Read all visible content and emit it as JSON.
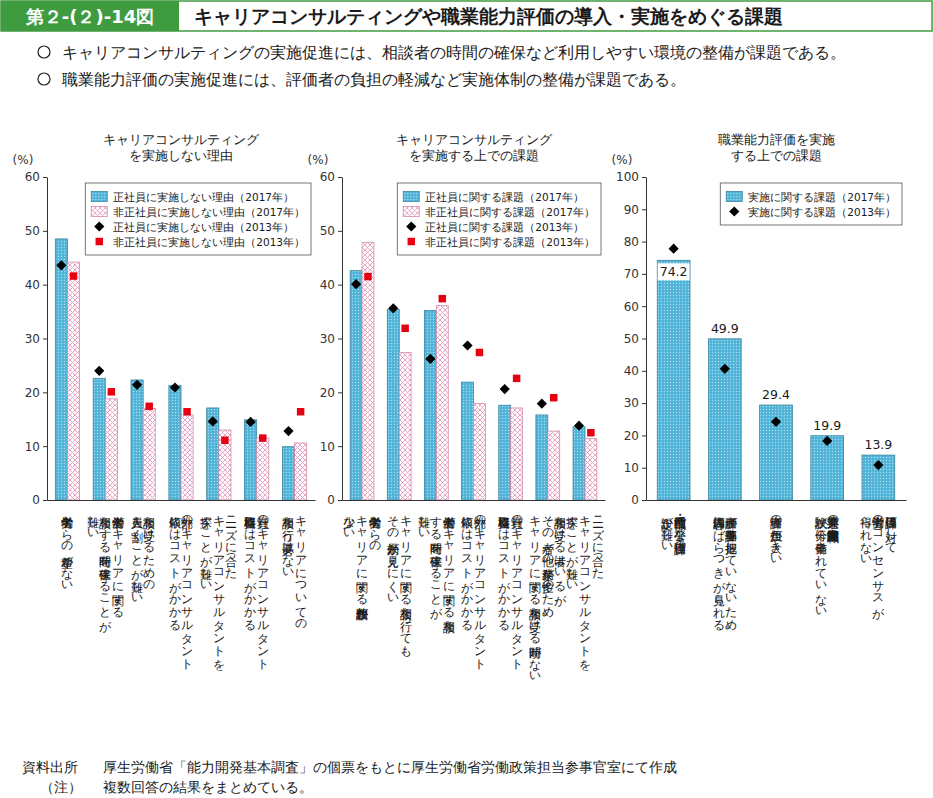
{
  "figure_number": "第２-(２)-14図",
  "title": "キャリアコンサルティングや職業能力評価の導入・実施をめぐる課題",
  "summary": [
    "キャリアコンサルティングの実施促進には、相談者の時間の確保など利用しやすい環境の整備が課題である。",
    "職業能力評価の実施促進には、評価者の負担の軽減など実施体制の整備が課題である。"
  ],
  "source_label": "資料出所",
  "source": "厚生労働省「能力開発基本調査」の個票をもとに厚生労働省労働政策担当参事官室にて作成",
  "note_label": "（注）",
  "note": "複数回答の結果をまとめている。",
  "chart_data": [
    {
      "type": "bar",
      "title": "キャリアコンサルティング\nを実施しない理由",
      "ylabel": "(%)",
      "categories": [
        "労働者からの希望がない",
        "労働者がキャリアに関する\n相談をする時間を確保することが\n難しい",
        "相談を受けるための\n人員を割くことが難しい",
        "外部のキャリアコンサルタント\n依頼にはコストがかかる",
        "ニーズに合った\nキャリアコンサルタントを\n探すことが難しい",
        "社員のキャリアコンサルタント\n資格取得にはコストがかかる",
        "キャリアについての\n相談を行う必要はない"
      ],
      "series": [
        {
          "name": "正社員に実施しない理由（2017年）",
          "type": "bar",
          "color": "#4fb4d8",
          "values": [
            48.5,
            22.6,
            22.3,
            21.3,
            17.1,
            14.9,
            9.9
          ]
        },
        {
          "name": "非正社員に実施しない理由（2017年）",
          "type": "bar",
          "color": "#e99cc0",
          "values": [
            44.2,
            18.8,
            17.0,
            15.8,
            13.0,
            11.5,
            10.6
          ]
        },
        {
          "name": "正社員に実施しない理由（2013年）",
          "type": "scatter",
          "marker": "diamond",
          "color": "#000000",
          "values": [
            43.6,
            24.0,
            21.4,
            20.9,
            14.6,
            14.5,
            12.8
          ]
        },
        {
          "name": "非正社員に実施しない理由（2013年）",
          "type": "scatter",
          "marker": "square",
          "color": "#e60012",
          "values": [
            41.6,
            20.1,
            17.4,
            16.4,
            11.1,
            11.5,
            16.4
          ]
        }
      ],
      "ylim": [
        0,
        60
      ],
      "yticks": [
        0,
        10,
        20,
        30,
        40,
        50,
        60
      ],
      "grid": false,
      "legend": "top-right"
    },
    {
      "type": "bar",
      "title": "キャリアコンサルティング\nを実施する上での課題",
      "ylabel": "(%)",
      "categories": [
        "労働者からの\nキャリアに関する相談件数が\n少ない",
        "キャリアに関する相談を行っても、\nその効果が見えにくい",
        "労働者がキャリアに関する相談を\nする時間を確保することが\n難しい",
        "外部のキャリアコンサルタント\n依頼にはコストがかかる",
        "社員のキャリアコンサルタント\n資格取得にはコストがかかる",
        "相談を受ける者はいるが、\nその者が他の業務が多忙のため、\nキャリアに関する相談を受ける時間がない",
        "ニーズに合った\nキャリアコンサルタントを\n探すことが難しい"
      ],
      "series": [
        {
          "name": "正社員に関する課題（2017年）",
          "type": "bar",
          "color": "#4fb4d8",
          "values": [
            42.6,
            35.4,
            35.2,
            21.9,
            17.6,
            15.8,
            13.6
          ]
        },
        {
          "name": "非正社員に関する課題（2017年）",
          "type": "bar",
          "color": "#e99cc0",
          "values": [
            47.8,
            27.4,
            36.1,
            17.9,
            17.1,
            12.8,
            11.4
          ]
        },
        {
          "name": "正社員に関する課題（2013年）",
          "type": "scatter",
          "marker": "diamond",
          "color": "#000000",
          "values": [
            40.1,
            35.6,
            26.2,
            28.7,
            20.6,
            17.9,
            13.8
          ]
        },
        {
          "name": "非正社員に関する課題（2013年）",
          "type": "scatter",
          "marker": "square",
          "color": "#e60012",
          "values": [
            41.5,
            31.9,
            37.4,
            27.4,
            22.6,
            19.0,
            12.5
          ]
        }
      ],
      "ylim": [
        0,
        60
      ],
      "yticks": [
        0,
        10,
        20,
        30,
        40,
        50,
        60
      ],
      "grid": false,
      "legend": "top-right"
    },
    {
      "type": "bar",
      "title": "職業能力評価を実施\nする上での課題",
      "ylabel": "(%)",
      "categories": [
        "全部門・職種で公平な評価項目の\n設定が難しい",
        "評価者が評価基準を把握していないため、\n評価内容にばらつきが見られる",
        "評価者の負担が大きい",
        "業界共通の職業能力評価基準や\n試験が十分に整備されていない",
        "評価項目に対して\n労働者のコンセンサスが\n得られない"
      ],
      "series": [
        {
          "name": "実施に関する課題（2017年）",
          "type": "bar",
          "color": "#4fb4d8",
          "values": [
            74.2,
            49.9,
            29.4,
            19.9,
            13.9
          ]
        },
        {
          "name": "実施に関する課題（2013年）",
          "type": "scatter",
          "marker": "diamond",
          "color": "#000000",
          "values": [
            77.8,
            40.6,
            24.2,
            18.3,
            10.8
          ]
        }
      ],
      "ylim": [
        0,
        100
      ],
      "yticks": [
        0,
        10,
        20,
        30,
        40,
        50,
        60,
        70,
        80,
        90,
        100
      ],
      "grid": false,
      "legend": "top-right",
      "data_labels": true
    }
  ]
}
